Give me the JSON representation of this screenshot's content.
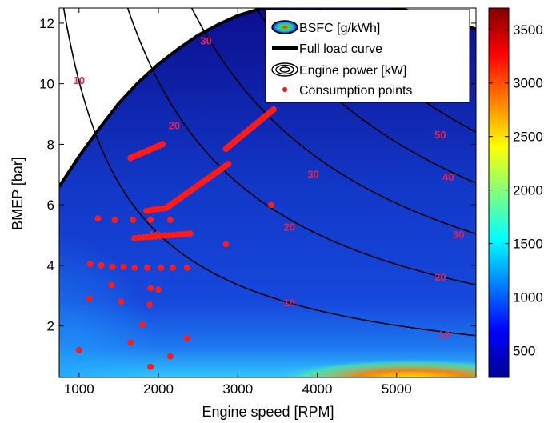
{
  "chart_data": {
    "type": "heatmap",
    "xlabel": "Engine speed [RPM]",
    "ylabel": "BMEP [bar]",
    "xlim": [
      750,
      6000
    ],
    "ylim": [
      0.3,
      12.5
    ],
    "x_ticks": [
      1000,
      2000,
      3000,
      4000,
      5000
    ],
    "y_ticks": [
      2,
      4,
      6,
      8,
      10,
      12
    ],
    "colorbar": {
      "range": [
        250,
        3700
      ],
      "ticks": [
        500,
        1000,
        1500,
        2000,
        2500,
        3000,
        3500
      ],
      "colormap": "jet"
    },
    "legend": {
      "position": "top-right",
      "entries": [
        "BSFC [g/kWh]",
        "Full load curve",
        "Engine power [kW]",
        "Consumption points"
      ]
    },
    "full_load_curve": {
      "x": [
        750,
        1000,
        1250,
        1500,
        1750,
        2000,
        2250,
        2500,
        2750,
        3000,
        3250,
        3500,
        3750,
        4000,
        4250,
        4500,
        4750,
        5000,
        5250,
        5500,
        5750,
        6000
      ],
      "y": [
        6.6,
        7.6,
        8.5,
        9.35,
        10.05,
        10.65,
        11.15,
        11.6,
        11.95,
        12.25,
        12.45,
        12.6,
        12.7,
        12.75,
        12.75,
        12.7,
        12.6,
        12.5,
        12.35,
        12.2,
        12.0,
        11.8
      ]
    },
    "power_contours": [
      {
        "label": "10",
        "power_kw": 10
      },
      {
        "label": "20",
        "power_kw": 20
      },
      {
        "label": "30",
        "power_kw": 30
      },
      {
        "label": "40",
        "power_kw": 40
      },
      {
        "label": "50",
        "power_kw": 50
      }
    ],
    "contour_labels": [
      {
        "text": "10",
        "x": 1000,
        "y": 10.1
      },
      {
        "text": "30",
        "x": 2600,
        "y": 11.4
      },
      {
        "text": "20",
        "x": 2200,
        "y": 8.6
      },
      {
        "text": "10",
        "x": 1950,
        "y": 5.0
      },
      {
        "text": "30",
        "x": 3950,
        "y": 7.0
      },
      {
        "text": "20",
        "x": 3650,
        "y": 5.25
      },
      {
        "text": "10",
        "x": 3650,
        "y": 2.75
      },
      {
        "text": "50",
        "x": 5550,
        "y": 8.3
      },
      {
        "text": "40",
        "x": 5650,
        "y": 6.9
      },
      {
        "text": "30",
        "x": 5780,
        "y": 5.0
      },
      {
        "text": "20",
        "x": 5550,
        "y": 3.6
      },
      {
        "text": "10",
        "x": 5600,
        "y": 1.7
      }
    ],
    "consumption_points": {
      "segments": [
        {
          "x1": 1650,
          "y1": 7.55,
          "x2": 2050,
          "y2": 8.0,
          "n": 12
        },
        {
          "x1": 2850,
          "y1": 7.85,
          "x2": 3450,
          "y2": 9.15,
          "n": 22
        },
        {
          "x1": 1850,
          "y1": 5.8,
          "x2": 2100,
          "y2": 5.9,
          "n": 6
        },
        {
          "x1": 2100,
          "y1": 5.9,
          "x2": 2880,
          "y2": 7.35,
          "n": 22
        },
        {
          "x1": 1700,
          "y1": 4.9,
          "x2": 2400,
          "y2": 5.05,
          "n": 14
        }
      ],
      "x": [
        1240,
        1450,
        1680,
        1900,
        2150,
        1140,
        1280,
        1420,
        1560,
        1700,
        1860,
        2030,
        2180,
        2360,
        1900,
        2000,
        1410,
        1890,
        1130,
        1530,
        1800,
        1650,
        2360,
        2150,
        1000,
        1900,
        3420,
        2850
      ],
      "y": [
        5.55,
        5.5,
        5.5,
        5.5,
        5.5,
        4.05,
        4.0,
        3.95,
        3.95,
        3.92,
        3.92,
        3.92,
        3.92,
        3.92,
        3.25,
        3.2,
        3.35,
        2.7,
        2.9,
        2.8,
        2.05,
        1.45,
        1.6,
        1.0,
        1.2,
        0.65,
        6.0,
        4.7
      ]
    }
  }
}
